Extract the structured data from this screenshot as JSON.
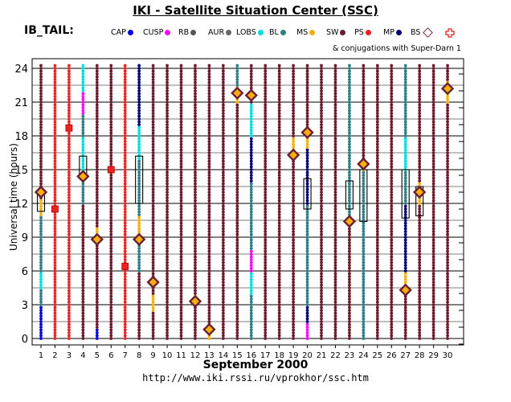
{
  "title": "IKI - Satellite Situation Center (SSC)",
  "tail_label": "IB_TAIL:",
  "legend": [
    {
      "label": "CAP",
      "color": "#0000dd"
    },
    {
      "label": "CUSP",
      "color": "#ff00ff"
    },
    {
      "label": "RB",
      "color": "#555555"
    },
    {
      "label": "AUR",
      "color": "#666666"
    },
    {
      "label": "LOBS",
      "color": "#00dddd"
    },
    {
      "label": "BL",
      "color": "#2e7d86"
    },
    {
      "label": "MS",
      "color": "#f5b010"
    },
    {
      "label": "SW",
      "color": "#6b1a2c"
    },
    {
      "label": "PS",
      "color": "#ee2222"
    },
    {
      "label": "MP",
      "color": "#000070"
    },
    {
      "label": "BS",
      "color": "#7b2a3a"
    }
  ],
  "conjugation_note": "& conjugations with Super-Darn 1",
  "url": "http://www.iki.rssi.ru/vprokhor/ssc.htm",
  "chart_data": {
    "type": "scatter",
    "title": "IKI - Satellite Situation Center (SSC)",
    "xlabel": "September    2000",
    "ylabel": "Universal time (hours)",
    "x_ticks": [
      "1",
      "2",
      "3",
      "4",
      "5",
      "6",
      "7",
      "8",
      "9",
      "10",
      "11",
      "12",
      "13",
      "14",
      "15",
      "16",
      "17",
      "18",
      "19",
      "20",
      "21",
      "22",
      "23",
      "24",
      "25",
      "26",
      "27",
      "28",
      "29",
      "30"
    ],
    "y_ticks": [
      0,
      3,
      6,
      9,
      12,
      15,
      18,
      21,
      24
    ],
    "xlim": [
      1,
      30
    ],
    "ylim": [
      0,
      24
    ],
    "grid": true,
    "region_colors": {
      "CAP": "#0000dd",
      "CUSP": "#ff00ff",
      "RB": "#555555",
      "AUR": "#666666",
      "LOBS": "#00dddd",
      "BL": "#2e7d86",
      "MS": "#f5b010",
      "SW": "#6b1a2c",
      "PS": "#ee2222",
      "MP": "#000070"
    },
    "days": [
      {
        "day": 1,
        "segments": [
          [
            0,
            3,
            "CAP"
          ],
          [
            3,
            4.5,
            "BL"
          ],
          [
            4.5,
            6,
            "LOBS"
          ],
          [
            6,
            11,
            "BL"
          ],
          [
            11,
            12.5,
            "MS"
          ],
          [
            12.5,
            24.5,
            "SW"
          ]
        ]
      },
      {
        "day": 2,
        "segments": [
          [
            0,
            24.5,
            "PS"
          ]
        ]
      },
      {
        "day": 3,
        "segments": [
          [
            0,
            24.5,
            "PS"
          ]
        ]
      },
      {
        "day": 4,
        "segments": [
          [
            0,
            12,
            "SW"
          ],
          [
            12,
            14,
            "BL"
          ],
          [
            14,
            18,
            "LOBS"
          ],
          [
            18,
            20,
            "BL"
          ],
          [
            20,
            22,
            "CUSP"
          ],
          [
            22,
            24.5,
            "LOBS"
          ]
        ]
      },
      {
        "day": 5,
        "segments": [
          [
            0,
            1,
            "CAP"
          ],
          [
            1,
            8.5,
            "SW"
          ],
          [
            8.5,
            10,
            "MS"
          ],
          [
            10,
            24.5,
            "SW"
          ]
        ]
      },
      {
        "day": 6,
        "segments": [
          [
            0,
            24.5,
            "SW"
          ]
        ]
      },
      {
        "day": 7,
        "segments": [
          [
            0,
            24.5,
            "PS"
          ]
        ]
      },
      {
        "day": 8,
        "segments": [
          [
            0,
            6,
            "SW"
          ],
          [
            6,
            9,
            "BL"
          ],
          [
            9,
            11,
            "MS"
          ],
          [
            11,
            16,
            "BL"
          ],
          [
            16,
            19,
            "LOBS"
          ],
          [
            19,
            24.5,
            "MP"
          ]
        ]
      },
      {
        "day": 9,
        "segments": [
          [
            0,
            2.5,
            "SW"
          ],
          [
            2.5,
            4,
            "MS"
          ],
          [
            4,
            24.5,
            "SW"
          ]
        ]
      },
      {
        "day": 10,
        "segments": [
          [
            0,
            24.5,
            "SW"
          ]
        ]
      },
      {
        "day": 11,
        "segments": [
          [
            0,
            24.5,
            "SW"
          ]
        ]
      },
      {
        "day": 12,
        "segments": [
          [
            0,
            3,
            "SW"
          ],
          [
            3,
            4,
            "MS"
          ],
          [
            4,
            24.5,
            "SW"
          ]
        ]
      },
      {
        "day": 13,
        "segments": [
          [
            0,
            1,
            "MS"
          ],
          [
            1,
            24.5,
            "SW"
          ]
        ]
      },
      {
        "day": 14,
        "segments": [
          [
            0,
            24.5,
            "SW"
          ]
        ]
      },
      {
        "day": 15,
        "segments": [
          [
            0,
            21,
            "SW"
          ],
          [
            21,
            22.5,
            "MS"
          ],
          [
            22.5,
            24.5,
            "BL"
          ]
        ]
      },
      {
        "day": 16,
        "segments": [
          [
            0,
            4,
            "BL"
          ],
          [
            4,
            6,
            "LOBS"
          ],
          [
            6,
            8,
            "CUSP"
          ],
          [
            8,
            14,
            "BL"
          ],
          [
            14,
            18,
            "MP"
          ],
          [
            18,
            21,
            "LOBS"
          ],
          [
            21,
            24.5,
            "SW"
          ]
        ]
      },
      {
        "day": 17,
        "segments": [
          [
            0,
            24.5,
            "SW"
          ]
        ]
      },
      {
        "day": 18,
        "segments": [
          [
            0,
            24.5,
            "SW"
          ]
        ]
      },
      {
        "day": 19,
        "segments": [
          [
            0,
            16,
            "SW"
          ],
          [
            16,
            18,
            "MS"
          ],
          [
            18,
            24.5,
            "SW"
          ]
        ]
      },
      {
        "day": 20,
        "segments": [
          [
            0,
            1.5,
            "CUSP"
          ],
          [
            1.5,
            3,
            "MP"
          ],
          [
            3,
            12,
            "BL"
          ],
          [
            12,
            17,
            "MP"
          ],
          [
            17,
            18,
            "MS"
          ],
          [
            18,
            24.5,
            "SW"
          ]
        ]
      },
      {
        "day": 21,
        "segments": [
          [
            0,
            24.5,
            "SW"
          ]
        ]
      },
      {
        "day": 22,
        "segments": [
          [
            0,
            24.5,
            "SW"
          ]
        ]
      },
      {
        "day": 23,
        "segments": [
          [
            0,
            10,
            "SW"
          ],
          [
            10,
            11,
            "MS"
          ],
          [
            11,
            20,
            "BL"
          ],
          [
            20,
            24.5,
            "BL"
          ]
        ]
      },
      {
        "day": 24,
        "segments": [
          [
            0,
            15,
            "BL"
          ],
          [
            15,
            16,
            "MS"
          ],
          [
            16,
            24.5,
            "SW"
          ]
        ]
      },
      {
        "day": 25,
        "segments": [
          [
            0,
            24.5,
            "SW"
          ]
        ]
      },
      {
        "day": 26,
        "segments": [
          [
            0,
            24.5,
            "SW"
          ]
        ]
      },
      {
        "day": 27,
        "segments": [
          [
            0,
            4,
            "SW"
          ],
          [
            4,
            6,
            "MS"
          ],
          [
            6,
            12,
            "MP"
          ],
          [
            12,
            15,
            "BL"
          ],
          [
            15,
            18,
            "LOBS"
          ],
          [
            18,
            24.5,
            "BL"
          ]
        ]
      },
      {
        "day": 28,
        "segments": [
          [
            0,
            12,
            "SW"
          ],
          [
            12,
            14,
            "MS"
          ],
          [
            14,
            24.5,
            "SW"
          ]
        ]
      },
      {
        "day": 29,
        "segments": [
          [
            0,
            24.5,
            "SW"
          ]
        ]
      },
      {
        "day": 30,
        "segments": [
          [
            0,
            21,
            "SW"
          ],
          [
            21,
            23,
            "MS"
          ],
          [
            23,
            24.5,
            "SW"
          ]
        ]
      }
    ],
    "bow_shock_crossings": [
      {
        "day": 1,
        "ut": 13
      },
      {
        "day": 4,
        "ut": 14.4
      },
      {
        "day": 5,
        "ut": 8.8
      },
      {
        "day": 8,
        "ut": 8.8
      },
      {
        "day": 9,
        "ut": 5
      },
      {
        "day": 12,
        "ut": 3.3
      },
      {
        "day": 13,
        "ut": 0.8
      },
      {
        "day": 15,
        "ut": 21.8
      },
      {
        "day": 16,
        "ut": 21.6
      },
      {
        "day": 19,
        "ut": 16.3
      },
      {
        "day": 20,
        "ut": 18.3
      },
      {
        "day": 23,
        "ut": 10.4
      },
      {
        "day": 24,
        "ut": 15.5
      },
      {
        "day": 27,
        "ut": 4.3
      },
      {
        "day": 28,
        "ut": 13
      },
      {
        "day": 30,
        "ut": 22.2
      }
    ],
    "plasmasheet_markers": [
      {
        "day": 2,
        "ut": 11.5
      },
      {
        "day": 3,
        "ut": 18.7
      },
      {
        "day": 6,
        "ut": 15
      },
      {
        "day": 7,
        "ut": 6.4
      }
    ],
    "superdarn_conjugation_boxes": [
      {
        "day": 1,
        "ut_from": 11.3,
        "ut_to": 13.2
      },
      {
        "day": 4,
        "ut_from": 14.2,
        "ut_to": 16.2
      },
      {
        "day": 8,
        "ut_from": 12,
        "ut_to": 16.2
      },
      {
        "day": 20,
        "ut_from": 11.5,
        "ut_to": 14.2
      },
      {
        "day": 23,
        "ut_from": 11.5,
        "ut_to": 14
      },
      {
        "day": 24,
        "ut_from": 10.4,
        "ut_to": 15
      },
      {
        "day": 27,
        "ut_from": 10.7,
        "ut_to": 15
      },
      {
        "day": 28,
        "ut_from": 10.9,
        "ut_to": 13.5
      }
    ]
  }
}
